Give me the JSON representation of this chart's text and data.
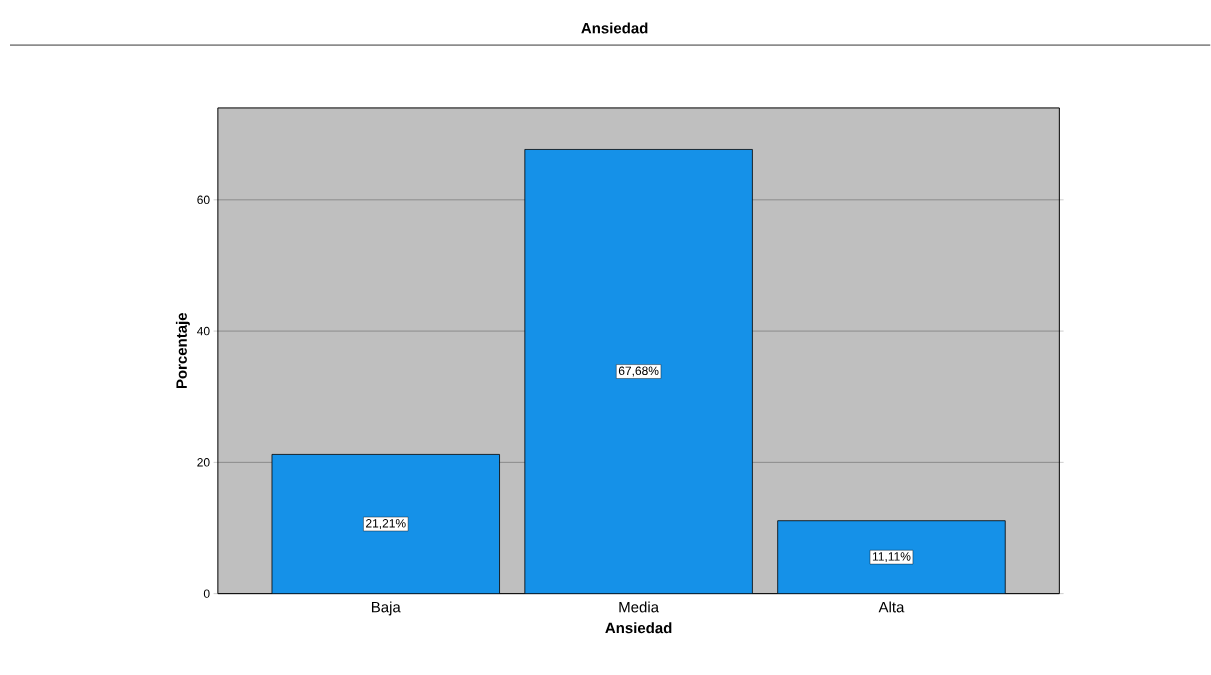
{
  "chart_data": {
    "type": "bar",
    "title": "Ansiedad",
    "xlabel": "Ansiedad",
    "ylabel": "Porcentaje",
    "categories": [
      "Baja",
      "Media",
      "Alta"
    ],
    "values": [
      21.21,
      67.68,
      11.11
    ],
    "value_labels": [
      "21,21%",
      "67,68%",
      "11,11%"
    ],
    "color": "#1591e8",
    "ylim": [
      0,
      74
    ],
    "yticks": [
      0,
      20,
      40,
      60
    ],
    "grid": "y"
  }
}
